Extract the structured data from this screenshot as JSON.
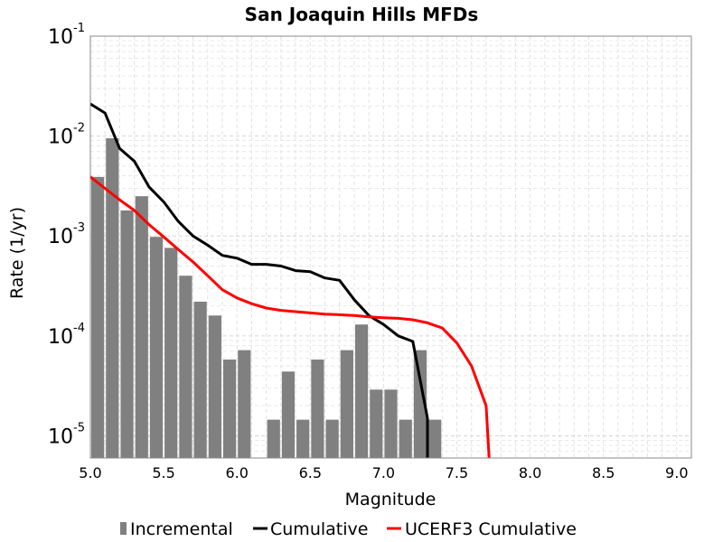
{
  "chart_data": {
    "type": "bar+line",
    "title": "San Joaquin Hills MFDs",
    "xlabel": "Magnitude",
    "ylabel": "Rate (1/yr)",
    "xlim": [
      5.0,
      9.1
    ],
    "ylim": [
      6e-06,
      0.1
    ],
    "yscale": "log",
    "grid": true,
    "legend_placement": "bottom",
    "x_ticks": [
      "5.0",
      "5.5",
      "6.0",
      "6.5",
      "7.0",
      "7.5",
      "8.0",
      "8.5",
      "9.0"
    ],
    "y_ticks": [
      {
        "base": "10",
        "exp": "-5",
        "value": 1e-05
      },
      {
        "base": "10",
        "exp": "-4",
        "value": 0.0001
      },
      {
        "base": "10",
        "exp": "-3",
        "value": 0.001
      },
      {
        "base": "10",
        "exp": "-2",
        "value": 0.01
      },
      {
        "base": "10",
        "exp": "-1",
        "value": 0.1
      }
    ],
    "series": [
      {
        "name": "Incremental",
        "kind": "bar",
        "color": "#808080",
        "bin_width": 0.1,
        "points": [
          [
            5.05,
            0.0039
          ],
          [
            5.15,
            0.0095
          ],
          [
            5.25,
            0.0018
          ],
          [
            5.35,
            0.0025
          ],
          [
            5.45,
            0.00098
          ],
          [
            5.55,
            0.00076
          ],
          [
            5.65,
            0.0004
          ],
          [
            5.75,
            0.00022
          ],
          [
            5.85,
            0.00016
          ],
          [
            5.95,
            5.8e-05
          ],
          [
            6.05,
            7.2e-05
          ],
          [
            6.25,
            1.45e-05
          ],
          [
            6.35,
            4.4e-05
          ],
          [
            6.45,
            1.45e-05
          ],
          [
            6.55,
            5.8e-05
          ],
          [
            6.65,
            1.45e-05
          ],
          [
            6.75,
            7.2e-05
          ],
          [
            6.85,
            0.00013
          ],
          [
            6.95,
            2.9e-05
          ],
          [
            7.05,
            2.9e-05
          ],
          [
            7.15,
            1.45e-05
          ],
          [
            7.25,
            7.2e-05
          ],
          [
            7.35,
            1.45e-05
          ]
        ]
      },
      {
        "name": "Cumulative",
        "kind": "line",
        "color": "#000000",
        "points": [
          [
            5.0,
            0.021
          ],
          [
            5.1,
            0.017
          ],
          [
            5.2,
            0.0075
          ],
          [
            5.3,
            0.0056
          ],
          [
            5.4,
            0.0031
          ],
          [
            5.5,
            0.0022
          ],
          [
            5.6,
            0.0014
          ],
          [
            5.7,
            0.001
          ],
          [
            5.8,
            0.00081
          ],
          [
            5.9,
            0.00064
          ],
          [
            6.0,
            0.0006
          ],
          [
            6.1,
            0.00052
          ],
          [
            6.2,
            0.00052
          ],
          [
            6.3,
            0.0005
          ],
          [
            6.4,
            0.00045
          ],
          [
            6.5,
            0.00044
          ],
          [
            6.6,
            0.00038
          ],
          [
            6.7,
            0.00036
          ],
          [
            6.8,
            0.00023
          ],
          [
            6.9,
            0.00016
          ],
          [
            7.0,
            0.00013
          ],
          [
            7.1,
            0.0001
          ],
          [
            7.2,
            8.8e-05
          ],
          [
            7.3,
            1.5e-05
          ],
          [
            7.3,
            6e-06
          ]
        ]
      },
      {
        "name": "UCERF3 Cumulative",
        "kind": "line",
        "color": "#ff0000",
        "points": [
          [
            5.0,
            0.0039
          ],
          [
            5.1,
            0.003
          ],
          [
            5.2,
            0.0023
          ],
          [
            5.3,
            0.0018
          ],
          [
            5.4,
            0.0013
          ],
          [
            5.5,
            0.00098
          ],
          [
            5.6,
            0.00073
          ],
          [
            5.7,
            0.00055
          ],
          [
            5.8,
            0.0004
          ],
          [
            5.9,
            0.00029
          ],
          [
            6.0,
            0.00024
          ],
          [
            6.1,
            0.00021
          ],
          [
            6.2,
            0.00019
          ],
          [
            6.3,
            0.00018
          ],
          [
            6.4,
            0.000175
          ],
          [
            6.5,
            0.00017
          ],
          [
            6.6,
            0.000165
          ],
          [
            6.7,
            0.000163
          ],
          [
            6.8,
            0.00016
          ],
          [
            6.9,
            0.000155
          ],
          [
            7.0,
            0.000152
          ],
          [
            7.1,
            0.00015
          ],
          [
            7.2,
            0.000145
          ],
          [
            7.3,
            0.000135
          ],
          [
            7.4,
            0.00012
          ],
          [
            7.5,
            8.5e-05
          ],
          [
            7.6,
            5e-05
          ],
          [
            7.7,
            2e-05
          ],
          [
            7.72,
            6e-06
          ]
        ]
      }
    ]
  }
}
